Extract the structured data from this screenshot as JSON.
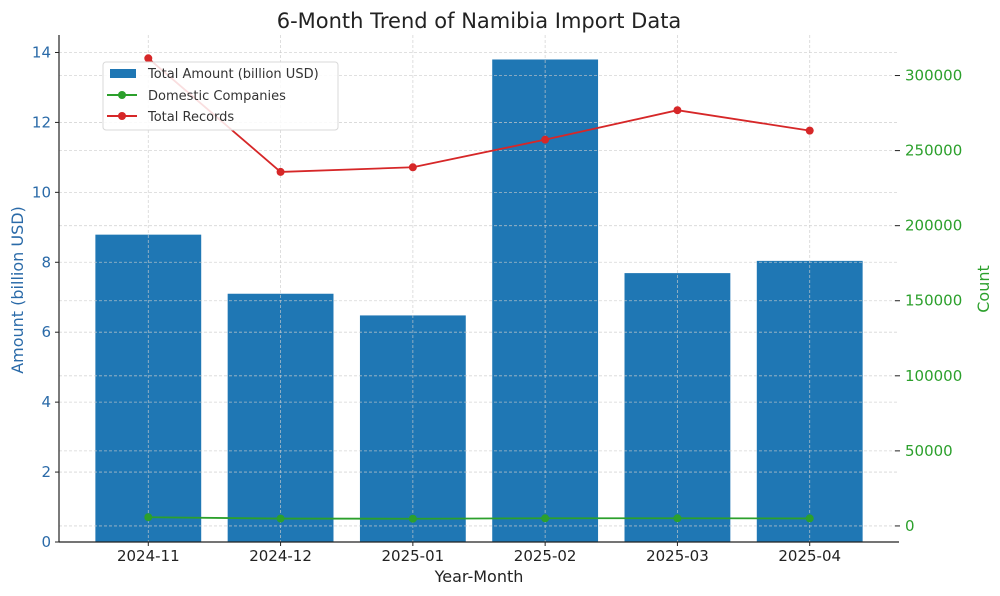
{
  "chart_data": {
    "type": "bar",
    "title": "6-Month Trend of Namibia Import Data",
    "xlabel": "Year-Month",
    "ylabel": "Amount (billion USD)",
    "ylabel_right": "Count",
    "categories": [
      "2024-11",
      "2024-12",
      "2025-01",
      "2025-02",
      "2025-03",
      "2025-04"
    ],
    "ylim": [
      0,
      14.5
    ],
    "ylim_right": [
      -10700,
      327000
    ],
    "yticks": [
      0,
      2,
      4,
      6,
      8,
      10,
      12,
      14
    ],
    "yticks_right": [
      0,
      50000,
      100000,
      150000,
      200000,
      250000,
      300000
    ],
    "grid": true,
    "legend_position": "upper-left",
    "series": [
      {
        "name": "Total Amount (billion USD)",
        "kind": "bar",
        "axis": "left",
        "color": "#1f77b4",
        "values": [
          8.79,
          7.1,
          6.48,
          13.8,
          7.69,
          8.04
        ]
      },
      {
        "name": "Domestic Companies",
        "kind": "line",
        "axis": "right",
        "color": "#2ca02c",
        "values": [
          5800,
          4900,
          4800,
          5100,
          5100,
          5000
        ]
      },
      {
        "name": "Total Records",
        "kind": "line",
        "axis": "right",
        "color": "#d62728",
        "values": [
          311500,
          235800,
          238900,
          257300,
          276900,
          263300
        ]
      }
    ],
    "colors": {
      "left_axis": "#2a6aa8",
      "right_axis": "#2ca02c",
      "grid": "#cccccc"
    }
  }
}
